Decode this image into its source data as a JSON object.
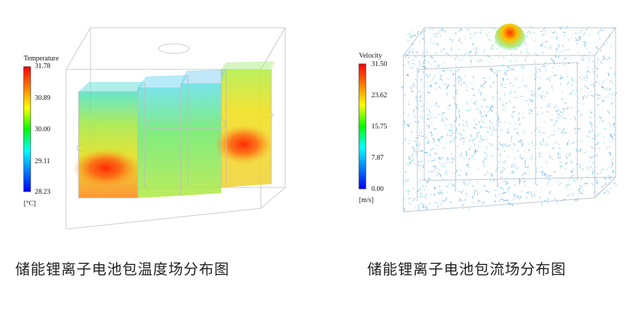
{
  "left_figure": {
    "legend_title": "Temperature",
    "ticks": [
      "31.78",
      "30.89",
      "30.00",
      "29.11",
      "28.23"
    ],
    "unit": "[°C]",
    "caption": "储能锂离子电池包温度场分布图",
    "colormap": [
      "#ff0000",
      "#ff8000",
      "#ffff00",
      "#00ff00",
      "#00ffff",
      "#0080ff",
      "#0000ff"
    ]
  },
  "right_figure": {
    "legend_title": "Velocity",
    "ticks": [
      "31.50",
      "23.62",
      "15.75",
      "7.87",
      "0.00"
    ],
    "unit": "[m/s]",
    "caption": "储能锂离子电池包流场分布图",
    "colormap": [
      "#ff0000",
      "#ff8000",
      "#ffff00",
      "#00ff00",
      "#00ffff",
      "#0080ff",
      "#0000ff"
    ]
  }
}
